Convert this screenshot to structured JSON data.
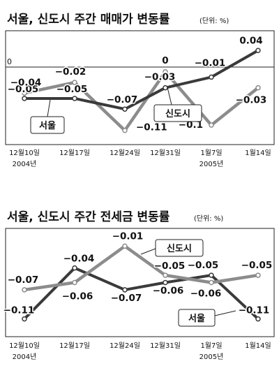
{
  "chart_data": [
    {
      "type": "line",
      "title": "서울, 신도시 주간 매매가 변동률",
      "unit": "(단위: %)",
      "categories": [
        "12월10일",
        "12월17일",
        "12월24일",
        "12월31일",
        "1월7일",
        "1월14일"
      ],
      "year_labels": {
        "first": "2004년",
        "fifth": "2005년"
      },
      "zero_label": "0",
      "ylim": [
        -0.13,
        0.06
      ],
      "series": [
        {
          "name": "서울",
          "color": "#3a3a3a",
          "values": [
            -0.05,
            -0.05,
            -0.07,
            -0.03,
            -0.01,
            0.04
          ],
          "labels": [
            "-0.05",
            "-0.05",
            "-0.07",
            "-0.03",
            "-0.01",
            "0.04"
          ]
        },
        {
          "name": "신도시",
          "color": "#8c8c8c",
          "values": [
            -0.04,
            -0.02,
            -0.11,
            0,
            -0.1,
            -0.03
          ],
          "labels": [
            "-0.04",
            "-0.02",
            "-0.11",
            "0",
            "-0.1",
            "-0.03"
          ]
        }
      ]
    },
    {
      "type": "line",
      "title": "서울, 신도시 주간 전세금 변동률",
      "unit": "(단위: %)",
      "categories": [
        "12월10일",
        "12월17일",
        "12월24일",
        "12월31일",
        "1월7일",
        "1월14일"
      ],
      "year_labels": {
        "first": "2004년",
        "fifth": "2005년"
      },
      "ylim": [
        -0.12,
        0.0
      ],
      "series": [
        {
          "name": "서울",
          "color": "#3a3a3a",
          "values": [
            -0.11,
            -0.04,
            -0.07,
            -0.06,
            -0.05,
            -0.11
          ],
          "labels": [
            "-0.11",
            "-0.04",
            "-0.07",
            "-0.06",
            "-0.05",
            "-0.11"
          ]
        },
        {
          "name": "신도시",
          "color": "#8c8c8c",
          "values": [
            -0.07,
            -0.06,
            -0.01,
            -0.05,
            -0.06,
            -0.05
          ],
          "labels": [
            "-0.07",
            "-0.06",
            "-0.01",
            "-0.05",
            "-0.06",
            "-0.05"
          ]
        }
      ]
    }
  ]
}
